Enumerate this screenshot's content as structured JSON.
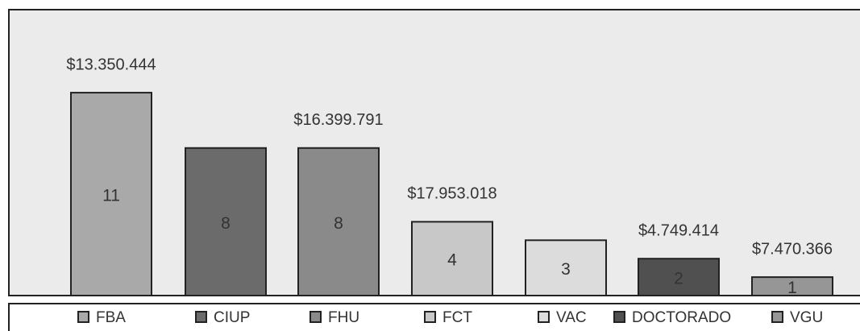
{
  "chart_data": {
    "type": "bar",
    "categories": [
      "FBA",
      "CIUP",
      "FHU",
      "FCT",
      "VAC",
      "DOCTORADO",
      "VGU"
    ],
    "values": [
      11,
      8,
      8,
      4,
      3,
      2,
      1
    ],
    "colors": [
      "#a9a9a9",
      "#6b6b6b",
      "#8a8a8a",
      "#c8c8c8",
      "#dcdcdc",
      "#505050",
      "#969696"
    ],
    "amounts": [
      "$13.350.444",
      null,
      "$16.399.791",
      "$17.953.018",
      null,
      "$4.749.414",
      "$7.470.366"
    ],
    "ylim": [
      0,
      15.5
    ]
  }
}
